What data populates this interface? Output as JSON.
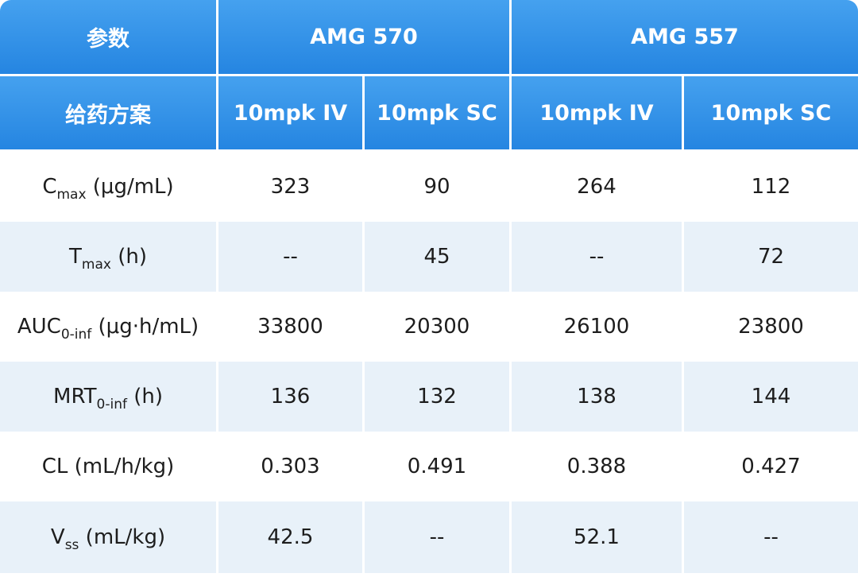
{
  "header": {
    "param_label": "参数",
    "regimen_label": "给药方案",
    "groups": [
      "AMG 570",
      "AMG 557"
    ],
    "regimens": [
      "10mpk IV",
      "10mpk SC",
      "10mpk IV",
      "10mpk SC"
    ]
  },
  "rows": [
    {
      "param": {
        "main": "C",
        "sub": "max",
        "unit": " (μg/mL)"
      },
      "values": [
        "323",
        "90",
        "264",
        "112"
      ]
    },
    {
      "param": {
        "main": "T",
        "sub": "max",
        "unit": " (h)"
      },
      "values": [
        "--",
        "45",
        "--",
        "72"
      ]
    },
    {
      "param": {
        "main": "AUC",
        "sub": "0-inf",
        "unit": " (μg·h/mL)"
      },
      "values": [
        "33800",
        "20300",
        "26100",
        "23800"
      ]
    },
    {
      "param": {
        "main": "MRT",
        "sub": "0-inf",
        "unit": " (h)"
      },
      "values": [
        "136",
        "132",
        "138",
        "144"
      ]
    },
    {
      "param": {
        "main": "CL (mL/h/kg)",
        "sub": "",
        "unit": ""
      },
      "values": [
        "0.303",
        "0.491",
        "0.388",
        "0.427"
      ]
    },
    {
      "param": {
        "main": "V",
        "sub": "ss",
        "unit": " (mL/kg)"
      },
      "values": [
        "42.5",
        "--",
        "52.1",
        "--"
      ]
    }
  ],
  "colors": {
    "header_top": "#45a1ef",
    "header_bottom": "#2585e1",
    "stripe": "#e8f1f9",
    "text": "#1d1d1d"
  }
}
